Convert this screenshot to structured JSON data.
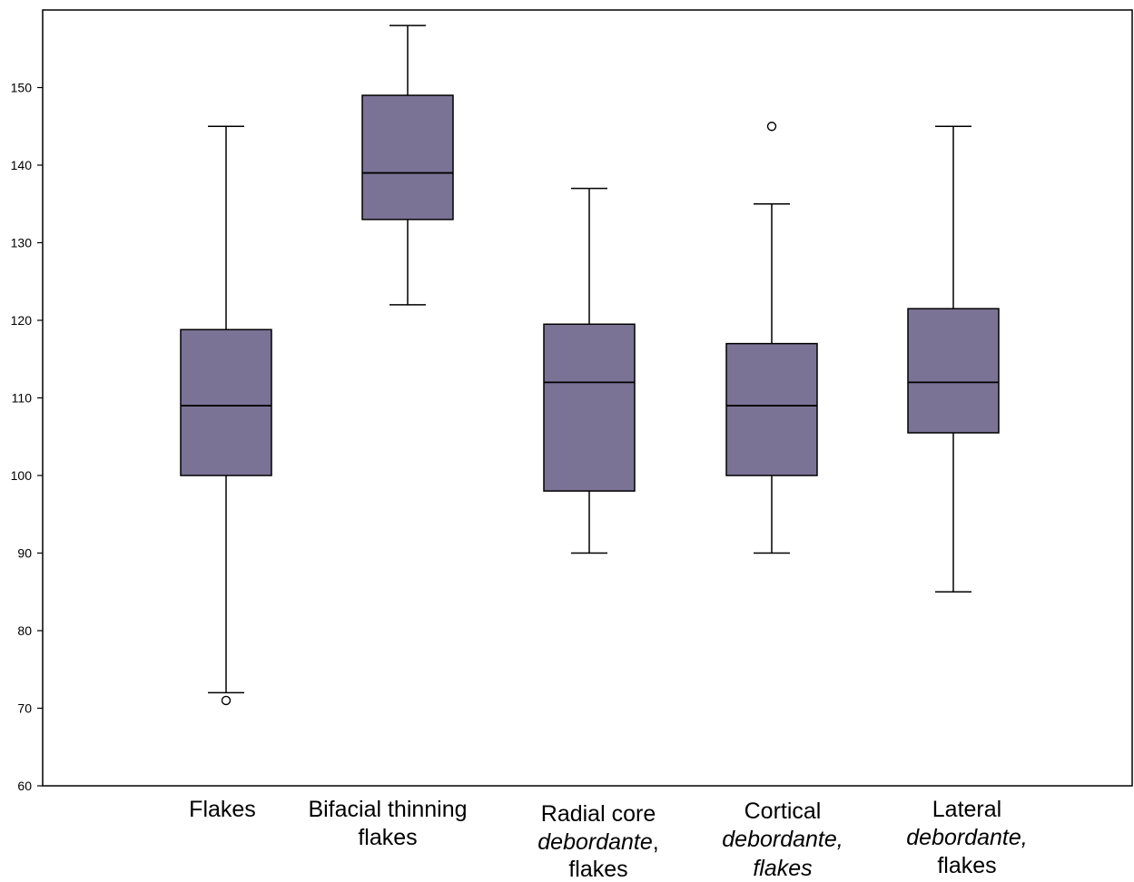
{
  "chart_data": {
    "type": "box",
    "title": "",
    "xlabel": "",
    "ylabel": "",
    "ylim": [
      60,
      160
    ],
    "yticks": [
      60,
      70,
      80,
      90,
      100,
      110,
      120,
      130,
      140,
      150
    ],
    "grid": false,
    "box_color": "#7b7396",
    "categories": [
      {
        "lines": [
          [
            {
              "t": "Flakes",
              "i": false
            }
          ]
        ]
      },
      {
        "lines": [
          [
            {
              "t": "Bifacial thinning",
              "i": false
            }
          ],
          [
            {
              "t": "flakes",
              "i": false
            }
          ]
        ]
      },
      {
        "lines": [
          [
            {
              "t": "Radial core",
              "i": false
            }
          ],
          [
            {
              "t": "debordante",
              "i": true
            },
            {
              "t": ",",
              "i": false
            }
          ],
          [
            {
              "t": "flakes",
              "i": false
            }
          ]
        ]
      },
      {
        "lines": [
          [
            {
              "t": "Cortical",
              "i": false
            }
          ],
          [
            {
              "t": "debordante,",
              "i": true
            }
          ],
          [
            {
              "t": "flakes",
              "i": true
            }
          ]
        ]
      },
      {
        "lines": [
          [
            {
              "t": "Lateral",
              "i": false
            }
          ],
          [
            {
              "t": "debordante,",
              "i": true
            }
          ],
          [
            {
              "t": "flakes",
              "i": false
            }
          ]
        ]
      }
    ],
    "boxes": [
      {
        "whisker_low": 72,
        "q1": 100,
        "median": 109,
        "q3": 118.8,
        "whisker_high": 145,
        "outliers": [
          71
        ]
      },
      {
        "whisker_low": 122,
        "q1": 133,
        "median": 139,
        "q3": 149,
        "whisker_high": 158,
        "outliers": []
      },
      {
        "whisker_low": 90,
        "q1": 98,
        "median": 112,
        "q3": 119.5,
        "whisker_high": 137,
        "outliers": []
      },
      {
        "whisker_low": 90,
        "q1": 100,
        "median": 109,
        "q3": 117,
        "whisker_high": 135,
        "outliers": [
          145
        ]
      },
      {
        "whisker_low": 85,
        "q1": 105.5,
        "median": 112,
        "q3": 121.5,
        "whisker_high": 145,
        "outliers": []
      }
    ]
  }
}
